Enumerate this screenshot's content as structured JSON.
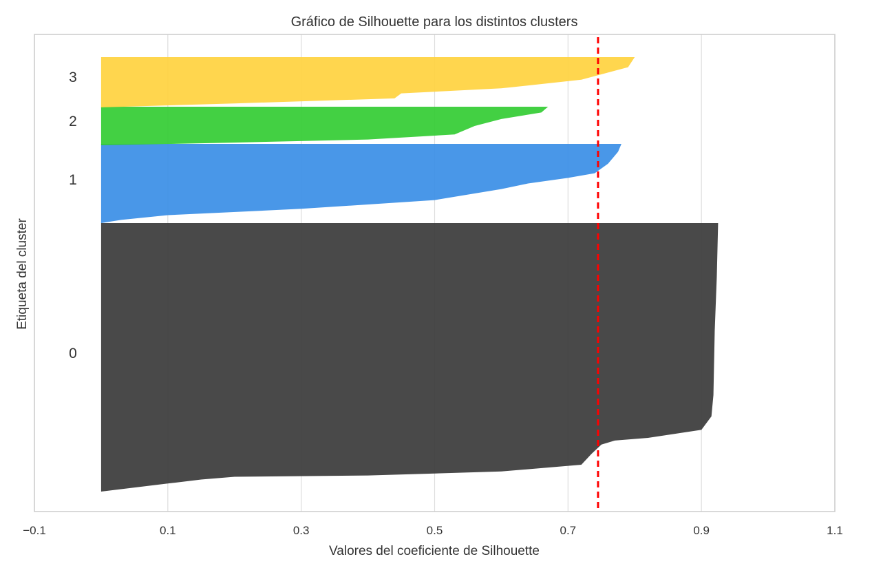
{
  "chart_data": {
    "type": "area",
    "title": "Gráfico de Silhouette para los distintos clusters",
    "xlabel": "Valores del coeficiente de Silhouette",
    "ylabel": "Etiqueta del cluster",
    "xlim": [
      -0.1,
      1.1
    ],
    "xticks": [
      -0.1,
      0.1,
      0.3,
      0.5,
      0.7,
      0.9,
      1.1
    ],
    "xtick_labels": [
      "−0.1",
      "0.1",
      "0.3",
      "0.5",
      "0.7",
      "0.9",
      "1.1"
    ],
    "grid": true,
    "average_silhouette": 0.745,
    "average_line_color": "#ff0000",
    "clusters": [
      {
        "label": "0",
        "color": "#3a3a3a",
        "profile": [
          [
            0.925,
            0.0
          ],
          [
            0.923,
            0.2
          ],
          [
            0.92,
            0.4
          ],
          [
            0.918,
            0.64
          ],
          [
            0.915,
            0.72
          ],
          [
            0.9,
            0.77
          ],
          [
            0.82,
            0.8
          ],
          [
            0.77,
            0.81
          ],
          [
            0.75,
            0.825
          ],
          [
            0.735,
            0.86
          ],
          [
            0.72,
            0.9
          ],
          [
            0.6,
            0.925
          ],
          [
            0.4,
            0.94
          ],
          [
            0.2,
            0.945
          ],
          [
            0.15,
            0.955
          ],
          [
            0.1,
            0.97
          ],
          [
            0.05,
            0.985
          ],
          [
            0.0,
            1.0
          ]
        ]
      },
      {
        "label": "1",
        "color": "#3a8ee6",
        "profile": [
          [
            0.78,
            0.0
          ],
          [
            0.775,
            0.1
          ],
          [
            0.76,
            0.25
          ],
          [
            0.74,
            0.37
          ],
          [
            0.7,
            0.43
          ],
          [
            0.64,
            0.5
          ],
          [
            0.6,
            0.57
          ],
          [
            0.5,
            0.71
          ],
          [
            0.3,
            0.82
          ],
          [
            0.1,
            0.9
          ],
          [
            0.03,
            0.96
          ],
          [
            0.0,
            1.0
          ]
        ]
      },
      {
        "label": "2",
        "color": "#33cc33",
        "profile": [
          [
            0.67,
            0.0
          ],
          [
            0.66,
            0.15
          ],
          [
            0.6,
            0.32
          ],
          [
            0.56,
            0.5
          ],
          [
            0.53,
            0.72
          ],
          [
            0.4,
            0.85
          ],
          [
            0.2,
            0.93
          ],
          [
            0.0,
            1.0
          ]
        ]
      },
      {
        "label": "3",
        "color": "#ffd23f",
        "profile": [
          [
            0.8,
            0.0
          ],
          [
            0.79,
            0.2
          ],
          [
            0.72,
            0.45
          ],
          [
            0.6,
            0.62
          ],
          [
            0.45,
            0.72
          ],
          [
            0.44,
            0.82
          ],
          [
            0.2,
            0.92
          ],
          [
            0.0,
            1.0
          ]
        ]
      }
    ]
  }
}
